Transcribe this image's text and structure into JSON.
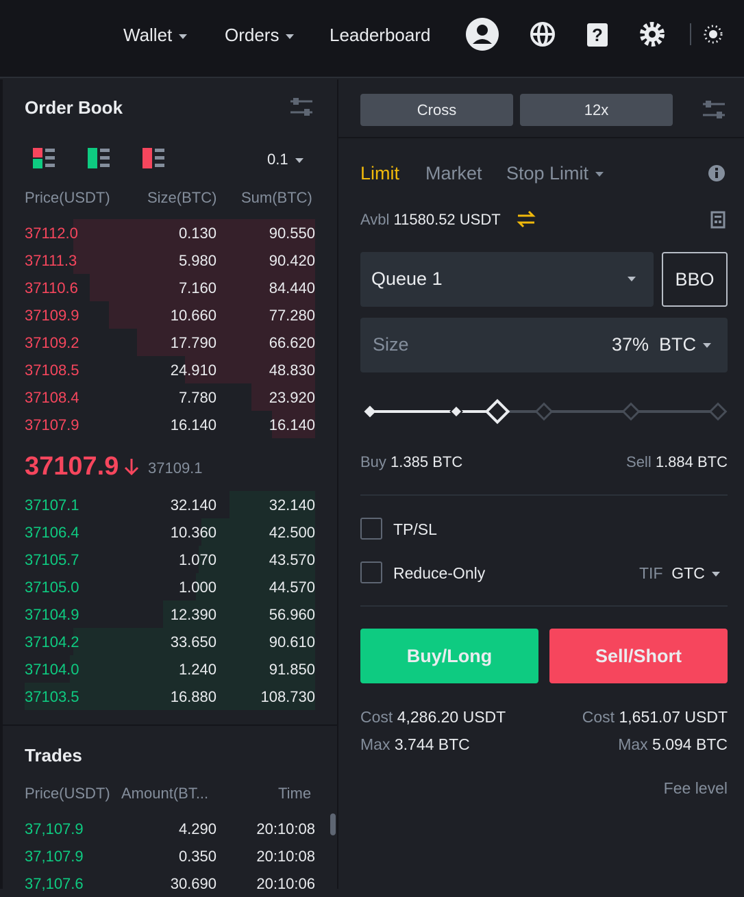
{
  "nav": {
    "items": [
      "Wallet",
      "Orders",
      "Leaderboard"
    ]
  },
  "order_book": {
    "title": "Order Book",
    "precision": "0.1",
    "headers": [
      "Price(USDT)",
      "Size(BTC)",
      "Sum(BTC)"
    ],
    "asks": [
      [
        "37112.0",
        "0.130",
        "90.550"
      ],
      [
        "37111.3",
        "5.980",
        "90.420"
      ],
      [
        "37110.6",
        "7.160",
        "84.440"
      ],
      [
        "37109.9",
        "10.660",
        "77.280"
      ],
      [
        "37109.2",
        "17.790",
        "66.620"
      ],
      [
        "37108.5",
        "24.910",
        "48.830"
      ],
      [
        "37108.4",
        "7.780",
        "23.920"
      ],
      [
        "37107.9",
        "16.140",
        "16.140"
      ]
    ],
    "last_price": "37107.9",
    "mark_price": "37109.1",
    "bids": [
      [
        "37107.1",
        "32.140",
        "32.140"
      ],
      [
        "37106.4",
        "10.360",
        "42.500"
      ],
      [
        "37105.7",
        "1.070",
        "43.570"
      ],
      [
        "37105.0",
        "1.000",
        "44.570"
      ],
      [
        "37104.9",
        "12.390",
        "56.960"
      ],
      [
        "37104.2",
        "33.650",
        "90.610"
      ],
      [
        "37104.0",
        "1.240",
        "91.850"
      ],
      [
        "37103.5",
        "16.880",
        "108.730"
      ]
    ]
  },
  "trades": {
    "title": "Trades",
    "headers": [
      "Price(USDT)",
      "Amount(BT...",
      "Time"
    ],
    "rows": [
      [
        "37,107.9",
        "4.290",
        "20:10:08"
      ],
      [
        "37,107.9",
        "0.350",
        "20:10:08"
      ],
      [
        "37,107.6",
        "30.690",
        "20:10:06"
      ]
    ]
  },
  "order_form": {
    "margin_mode": "Cross",
    "leverage": "12x",
    "tabs": [
      "Limit",
      "Market",
      "Stop Limit"
    ],
    "avbl_label": "Avbl",
    "avbl_value": "11580.52 USDT",
    "queue": "Queue 1",
    "bbo": "BBO",
    "size_label": "Size",
    "size_percent": "37%",
    "size_unit": "BTC",
    "buy_label": "Buy",
    "buy_value": "1.385 BTC",
    "sell_label": "Sell",
    "sell_value": "1.884 BTC",
    "tpsl": "TP/SL",
    "reduce_only": "Reduce-Only",
    "tif_label": "TIF",
    "tif_value": "GTC",
    "buy_button": "Buy/Long",
    "sell_button": "Sell/Short",
    "buy_cost_label": "Cost",
    "buy_cost": "4,286.20 USDT",
    "buy_max_label": "Max",
    "buy_max": "3.744 BTC",
    "sell_cost_label": "Cost",
    "sell_cost": "1,651.07 USDT",
    "sell_max_label": "Max",
    "sell_max": "5.094 BTC",
    "fee_level": "Fee level"
  }
}
